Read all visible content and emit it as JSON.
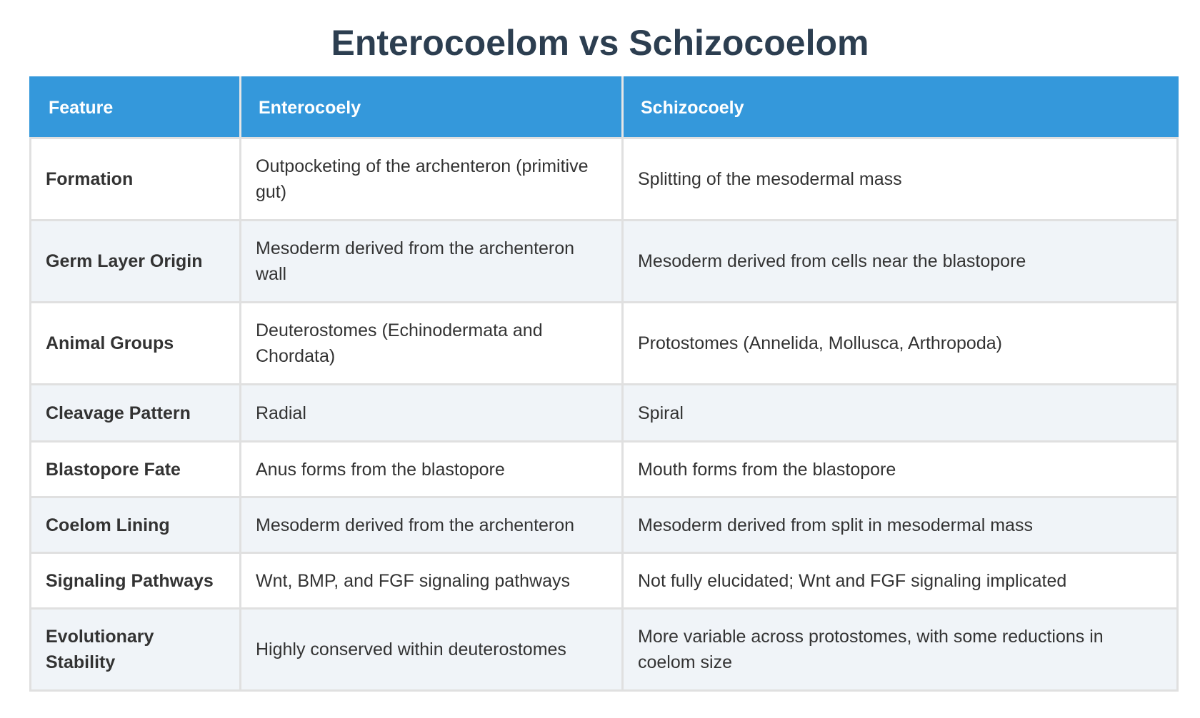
{
  "title": "Enterocoelom vs Schizocoelom",
  "colors": {
    "header_bg": "#3498db",
    "title": "#2c3e50",
    "row_alt_bg": "#f0f4f8"
  },
  "table": {
    "headers": [
      "Feature",
      "Enterocoely",
      "Schizocoely"
    ],
    "rows": [
      [
        "Formation",
        "Outpocketing of the archenteron (primitive gut)",
        "Splitting of the mesodermal mass"
      ],
      [
        "Germ Layer Origin",
        "Mesoderm derived from the archenteron wall",
        "Mesoderm derived from cells near the blastopore"
      ],
      [
        "Animal Groups",
        "Deuterostomes (Echinodermata and Chordata)",
        "Protostomes (Annelida, Mollusca, Arthropoda)"
      ],
      [
        "Cleavage Pattern",
        "Radial",
        "Spiral"
      ],
      [
        "Blastopore Fate",
        "Anus forms from the blastopore",
        "Mouth forms from the blastopore"
      ],
      [
        "Coelom Lining",
        "Mesoderm derived from the archenteron",
        "Mesoderm derived from split in mesodermal mass"
      ],
      [
        "Signaling Pathways",
        "Wnt, BMP, and FGF signaling pathways",
        "Not fully elucidated; Wnt and FGF signaling implicated"
      ],
      [
        "Evolutionary Stability",
        "Highly conserved within deuterostomes",
        "More variable across protostomes, with some reductions in coelom size"
      ]
    ]
  }
}
